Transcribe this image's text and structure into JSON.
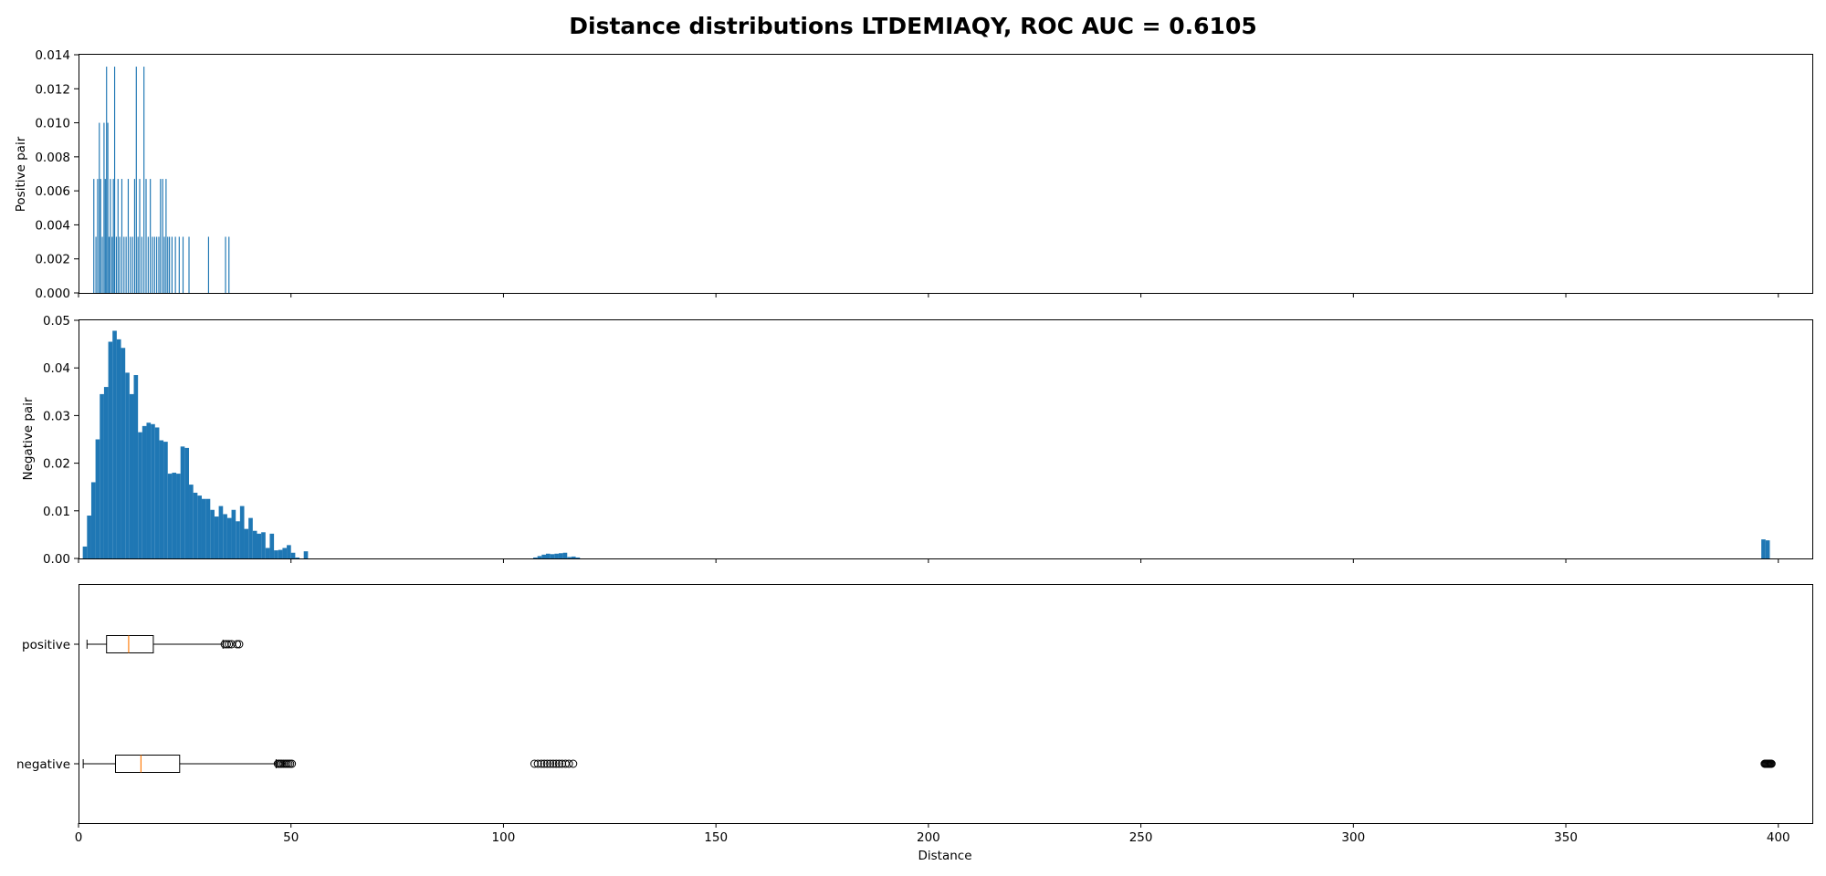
{
  "chart_data": {
    "title": "Distance distributions LTDEMIAQY, ROC AUC = 0.6105",
    "xlabel": "Distance",
    "xlim": [
      0,
      408
    ],
    "x_ticks": [
      0,
      50,
      100,
      150,
      200,
      250,
      300,
      350,
      400
    ],
    "bar_color": "#1f77b4",
    "median_color": "#ff7f0e",
    "panels": [
      {
        "type": "bar",
        "ylabel": "Positive pair",
        "ylim": [
          0,
          0.014
        ],
        "y_ticks": [
          "0.000",
          "0.002",
          "0.004",
          "0.006",
          "0.008",
          "0.010",
          "0.012",
          "0.014"
        ],
        "bin_width": 0.25,
        "bars": [
          [
            3.6,
            0.0067
          ],
          [
            4.1,
            0.0033
          ],
          [
            4.5,
            0.0067
          ],
          [
            4.9,
            0.01
          ],
          [
            5.2,
            0.0067
          ],
          [
            5.6,
            0.0033
          ],
          [
            6.0,
            0.01
          ],
          [
            6.3,
            0.0067
          ],
          [
            6.6,
            0.0133
          ],
          [
            6.9,
            0.01
          ],
          [
            7.2,
            0.0033
          ],
          [
            7.5,
            0.0067
          ],
          [
            7.9,
            0.0033
          ],
          [
            8.2,
            0.0067
          ],
          [
            8.5,
            0.0133
          ],
          [
            8.9,
            0.0033
          ],
          [
            9.3,
            0.0067
          ],
          [
            9.7,
            0.0033
          ],
          [
            10.2,
            0.0067
          ],
          [
            10.7,
            0.0033
          ],
          [
            11.2,
            0.0033
          ],
          [
            11.7,
            0.0067
          ],
          [
            12.2,
            0.0033
          ],
          [
            12.7,
            0.0033
          ],
          [
            13.2,
            0.0067
          ],
          [
            13.6,
            0.0133
          ],
          [
            14.0,
            0.0033
          ],
          [
            14.4,
            0.0067
          ],
          [
            14.9,
            0.0033
          ],
          [
            15.4,
            0.0133
          ],
          [
            15.9,
            0.0067
          ],
          [
            16.4,
            0.0033
          ],
          [
            16.9,
            0.0067
          ],
          [
            17.4,
            0.0033
          ],
          [
            17.9,
            0.0033
          ],
          [
            18.4,
            0.0033
          ],
          [
            18.9,
            0.0033
          ],
          [
            19.3,
            0.0067
          ],
          [
            19.8,
            0.0067
          ],
          [
            20.2,
            0.0033
          ],
          [
            20.6,
            0.0067
          ],
          [
            21.0,
            0.0033
          ],
          [
            21.4,
            0.0033
          ],
          [
            22.0,
            0.0033
          ],
          [
            22.8,
            0.0033
          ],
          [
            23.7,
            0.0033
          ],
          [
            24.6,
            0.0033
          ],
          [
            26.0,
            0.0033
          ],
          [
            30.6,
            0.0033
          ],
          [
            34.6,
            0.0033
          ],
          [
            35.4,
            0.0033
          ]
        ]
      },
      {
        "type": "bar",
        "ylabel": "Negative pair",
        "ylim": [
          0,
          0.05
        ],
        "y_ticks": [
          "0.00",
          "0.01",
          "0.02",
          "0.03",
          "0.04",
          "0.05"
        ],
        "bin_width": 1.0,
        "bars": [
          [
            1.5,
            0.0025
          ],
          [
            2.5,
            0.009
          ],
          [
            3.5,
            0.016
          ],
          [
            4.5,
            0.025
          ],
          [
            5.5,
            0.0345
          ],
          [
            6.5,
            0.036
          ],
          [
            7.5,
            0.0455
          ],
          [
            8.5,
            0.0478
          ],
          [
            9.5,
            0.046
          ],
          [
            10.5,
            0.0442
          ],
          [
            11.5,
            0.039
          ],
          [
            12.5,
            0.0345
          ],
          [
            13.5,
            0.0385
          ],
          [
            14.5,
            0.0265
          ],
          [
            15.5,
            0.0278
          ],
          [
            16.5,
            0.0285
          ],
          [
            17.5,
            0.0282
          ],
          [
            18.5,
            0.0275
          ],
          [
            19.5,
            0.0248
          ],
          [
            20.5,
            0.0245
          ],
          [
            21.5,
            0.0178
          ],
          [
            22.5,
            0.018
          ],
          [
            23.5,
            0.0178
          ],
          [
            24.5,
            0.0235
          ],
          [
            25.5,
            0.0232
          ],
          [
            26.5,
            0.0155
          ],
          [
            27.5,
            0.0138
          ],
          [
            28.5,
            0.0132
          ],
          [
            29.5,
            0.0125
          ],
          [
            30.5,
            0.0125
          ],
          [
            31.5,
            0.0102
          ],
          [
            32.5,
            0.0088
          ],
          [
            33.5,
            0.011
          ],
          [
            34.5,
            0.0093
          ],
          [
            35.5,
            0.0085
          ],
          [
            36.5,
            0.0102
          ],
          [
            37.5,
            0.0078
          ],
          [
            38.5,
            0.011
          ],
          [
            39.5,
            0.0062
          ],
          [
            40.5,
            0.0085
          ],
          [
            41.5,
            0.0058
          ],
          [
            42.5,
            0.0052
          ],
          [
            43.5,
            0.0055
          ],
          [
            44.5,
            0.0022
          ],
          [
            45.5,
            0.0052
          ],
          [
            46.5,
            0.0017
          ],
          [
            47.5,
            0.0018
          ],
          [
            48.5,
            0.0022
          ],
          [
            49.5,
            0.0028
          ],
          [
            50.5,
            0.0012
          ],
          [
            51.5,
            0.0002
          ],
          [
            53.5,
            0.0015
          ],
          [
            107.5,
            0.0002
          ],
          [
            108.5,
            0.0005
          ],
          [
            109.5,
            0.0008
          ],
          [
            110.5,
            0.001
          ],
          [
            111.5,
            0.0009
          ],
          [
            112.5,
            0.001
          ],
          [
            113.5,
            0.0011
          ],
          [
            114.5,
            0.0012
          ],
          [
            115.5,
            0.0003
          ],
          [
            116.5,
            0.0004
          ],
          [
            117.5,
            0.0002
          ],
          [
            396.5,
            0.004
          ],
          [
            397.5,
            0.0038
          ]
        ]
      },
      {
        "type": "box",
        "categories": [
          "positive",
          "negative"
        ],
        "boxes": [
          {
            "label": "positive",
            "whisker_low": 2.0,
            "q1": 6.6,
            "median": 11.8,
            "q3": 17.6,
            "whisker_high": 34.0,
            "outliers": [
              34.4,
              34.9,
              35.4,
              36.0,
              37.3,
              37.8
            ]
          },
          {
            "label": "negative",
            "whisker_low": 1.1,
            "q1": 8.7,
            "median": 14.7,
            "q3": 23.8,
            "whisker_high": 46.5,
            "outliers": [
              46.9,
              47.2,
              47.5,
              47.8,
              48.2,
              48.6,
              49.0,
              49.4,
              49.8,
              50.2,
              107.3,
              108.1,
              108.9,
              109.6,
              110.3,
              111.0,
              111.7,
              112.4,
              113.1,
              113.8,
              114.6,
              115.4,
              116.4,
              396.8,
              397.0,
              397.2,
              397.4,
              397.6,
              397.8,
              398.0,
              398.2,
              398.4
            ]
          }
        ]
      }
    ]
  }
}
